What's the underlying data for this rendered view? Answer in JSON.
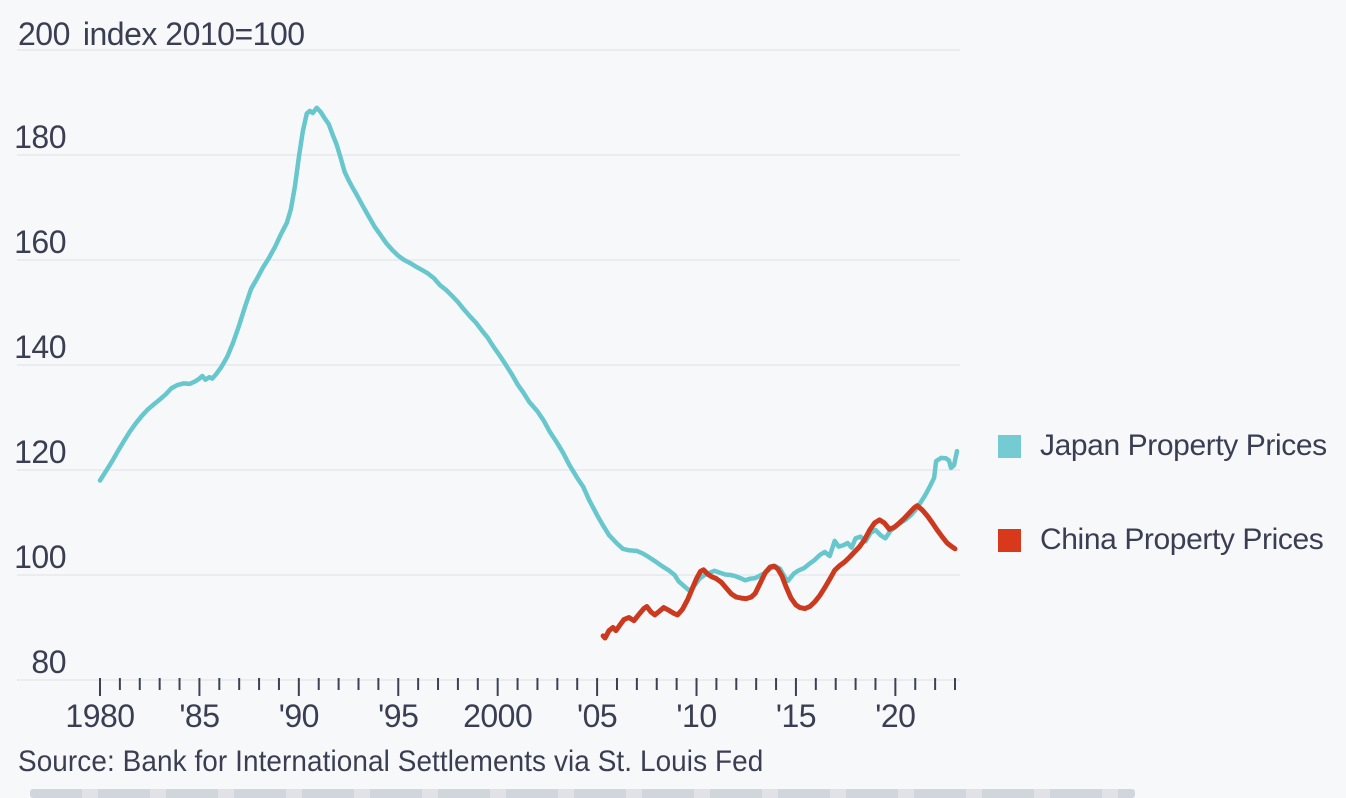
{
  "title": {
    "top_tick": "200",
    "axis_label": "index 2010=100"
  },
  "source": "Source: Bank for International Settlements via St. Louis Fed",
  "colors": {
    "background": "#f7f8fa",
    "gridline": "#e3e5ea",
    "text": "#3b3e52",
    "tick": "#3e4156",
    "japan_line": "#68c6cd",
    "japan_swatch": "#74ccd2",
    "china_line": "#cb3a1f",
    "china_swatch": "#d8391a"
  },
  "legend": [
    {
      "label": "Japan Property Prices",
      "swatch_color": "#74ccd2"
    },
    {
      "label": "China Property Prices",
      "swatch_color": "#d8391a"
    }
  ],
  "chart_data": {
    "type": "line",
    "title": "index 2010=100",
    "xlabel": "",
    "ylabel": "index 2010=100",
    "ylim": [
      80,
      200
    ],
    "xlim": [
      1980,
      2023.3
    ],
    "grid": true,
    "legend_position": "right",
    "y_axis": {
      "ticks": [
        200,
        180,
        160,
        140,
        120,
        100,
        80
      ]
    },
    "x_axis": {
      "labeled_years": [
        1980,
        1985,
        1990,
        1995,
        2000,
        2005,
        2010,
        2015,
        2020
      ],
      "tick_labels": [
        "1980",
        "'85",
        "'90",
        "'95",
        "2000",
        "'05",
        "'10",
        "'15",
        "'20"
      ],
      "minor_tick_every_years": 1,
      "first_tick_year": 1980,
      "last_tick_year": 2023
    },
    "series": [
      {
        "name": "Japan Property Prices",
        "color": "#68c6cd",
        "stroke_width": 4.5,
        "points": [
          [
            1980.0,
            118.0
          ],
          [
            1980.3,
            119.8
          ],
          [
            1980.6,
            121.6
          ],
          [
            1980.9,
            123.6
          ],
          [
            1981.2,
            125.5
          ],
          [
            1981.5,
            127.3
          ],
          [
            1981.8,
            128.9
          ],
          [
            1982.1,
            130.3
          ],
          [
            1982.4,
            131.5
          ],
          [
            1982.7,
            132.5
          ],
          [
            1983.0,
            133.4
          ],
          [
            1983.3,
            134.4
          ],
          [
            1983.6,
            135.6
          ],
          [
            1983.9,
            136.2
          ],
          [
            1984.2,
            136.5
          ],
          [
            1984.5,
            136.4
          ],
          [
            1984.8,
            136.9
          ],
          [
            1985.0,
            137.4
          ],
          [
            1985.15,
            137.9
          ],
          [
            1985.3,
            137.2
          ],
          [
            1985.5,
            137.7
          ],
          [
            1985.65,
            137.4
          ],
          [
            1985.85,
            138.3
          ],
          [
            1986.1,
            139.6
          ],
          [
            1986.4,
            141.6
          ],
          [
            1986.7,
            144.3
          ],
          [
            1987.0,
            147.6
          ],
          [
            1987.3,
            151.2
          ],
          [
            1987.6,
            154.5
          ],
          [
            1987.9,
            156.5
          ],
          [
            1988.2,
            158.6
          ],
          [
            1988.5,
            160.4
          ],
          [
            1988.8,
            162.5
          ],
          [
            1989.1,
            164.9
          ],
          [
            1989.4,
            167.1
          ],
          [
            1989.6,
            169.7
          ],
          [
            1989.8,
            174.0
          ],
          [
            1990.0,
            179.5
          ],
          [
            1990.2,
            184.5
          ],
          [
            1990.4,
            187.9
          ],
          [
            1990.55,
            188.4
          ],
          [
            1990.7,
            188.0
          ],
          [
            1990.9,
            189.0
          ],
          [
            1991.1,
            188.2
          ],
          [
            1991.3,
            187.0
          ],
          [
            1991.5,
            185.9
          ],
          [
            1991.7,
            183.9
          ],
          [
            1991.9,
            182.0
          ],
          [
            1992.1,
            179.5
          ],
          [
            1992.3,
            176.8
          ],
          [
            1992.5,
            175.2
          ],
          [
            1992.7,
            173.8
          ],
          [
            1992.9,
            172.5
          ],
          [
            1993.2,
            170.4
          ],
          [
            1993.5,
            168.4
          ],
          [
            1993.8,
            166.4
          ],
          [
            1994.1,
            164.8
          ],
          [
            1994.4,
            163.2
          ],
          [
            1994.7,
            161.9
          ],
          [
            1995.0,
            160.8
          ],
          [
            1995.3,
            160.0
          ],
          [
            1995.6,
            159.4
          ],
          [
            1995.9,
            158.7
          ],
          [
            1996.2,
            158.1
          ],
          [
            1996.5,
            157.4
          ],
          [
            1996.8,
            156.5
          ],
          [
            1997.1,
            155.2
          ],
          [
            1997.4,
            154.3
          ],
          [
            1997.7,
            153.2
          ],
          [
            1998.0,
            152.0
          ],
          [
            1998.3,
            150.6
          ],
          [
            1998.6,
            149.3
          ],
          [
            1998.9,
            148.1
          ],
          [
            1999.2,
            146.6
          ],
          [
            1999.5,
            145.2
          ],
          [
            1999.8,
            143.4
          ],
          [
            2000.1,
            141.8
          ],
          [
            2000.4,
            140.1
          ],
          [
            2000.7,
            138.3
          ],
          [
            2001.0,
            136.3
          ],
          [
            2001.3,
            134.7
          ],
          [
            2001.6,
            132.9
          ],
          [
            2002.0,
            131.2
          ],
          [
            2002.3,
            129.5
          ],
          [
            2002.6,
            127.4
          ],
          [
            2003.0,
            125.1
          ],
          [
            2003.3,
            123.2
          ],
          [
            2003.6,
            121.0
          ],
          [
            2004.0,
            118.5
          ],
          [
            2004.3,
            116.8
          ],
          [
            2004.6,
            114.3
          ],
          [
            2005.0,
            111.4
          ],
          [
            2005.3,
            109.4
          ],
          [
            2005.6,
            107.6
          ],
          [
            2006.0,
            106.0
          ],
          [
            2006.3,
            105.0
          ],
          [
            2006.6,
            104.7
          ],
          [
            2007.0,
            104.6
          ],
          [
            2007.3,
            104.1
          ],
          [
            2007.6,
            103.4
          ],
          [
            2008.0,
            102.4
          ],
          [
            2008.3,
            101.6
          ],
          [
            2008.6,
            100.9
          ],
          [
            2008.9,
            100.0
          ],
          [
            2009.1,
            98.8
          ],
          [
            2009.4,
            97.8
          ],
          [
            2009.65,
            97.0
          ],
          [
            2009.9,
            98.0
          ],
          [
            2010.15,
            99.3
          ],
          [
            2010.4,
            100.0
          ],
          [
            2010.65,
            100.4
          ],
          [
            2010.9,
            100.8
          ],
          [
            2011.2,
            100.4
          ],
          [
            2011.45,
            100.1
          ],
          [
            2011.7,
            100.0
          ],
          [
            2011.95,
            99.8
          ],
          [
            2012.2,
            99.4
          ],
          [
            2012.45,
            99.0
          ],
          [
            2012.7,
            99.3
          ],
          [
            2012.95,
            99.4
          ],
          [
            2013.2,
            99.9
          ],
          [
            2013.45,
            100.4
          ],
          [
            2013.7,
            101.2
          ],
          [
            2013.95,
            101.7
          ],
          [
            2014.2,
            101.2
          ],
          [
            2014.45,
            99.5
          ],
          [
            2014.6,
            98.9
          ],
          [
            2014.9,
            100.3
          ],
          [
            2015.15,
            100.9
          ],
          [
            2015.4,
            101.3
          ],
          [
            2015.7,
            102.2
          ],
          [
            2015.95,
            102.9
          ],
          [
            2016.2,
            103.8
          ],
          [
            2016.45,
            104.4
          ],
          [
            2016.7,
            103.6
          ],
          [
            2016.95,
            106.5
          ],
          [
            2017.15,
            105.4
          ],
          [
            2017.4,
            105.7
          ],
          [
            2017.6,
            106.1
          ],
          [
            2017.8,
            105.2
          ],
          [
            2018.0,
            107.0
          ],
          [
            2018.25,
            107.3
          ],
          [
            2018.5,
            106.4
          ],
          [
            2018.75,
            108.0
          ],
          [
            2019.0,
            108.6
          ],
          [
            2019.25,
            107.6
          ],
          [
            2019.5,
            107.0
          ],
          [
            2019.75,
            108.4
          ],
          [
            2020.0,
            109.2
          ],
          [
            2020.25,
            109.9
          ],
          [
            2020.5,
            110.5
          ],
          [
            2020.75,
            111.3
          ],
          [
            2021.0,
            112.3
          ],
          [
            2021.25,
            113.7
          ],
          [
            2021.5,
            115.2
          ],
          [
            2021.75,
            117.0
          ],
          [
            2021.95,
            118.5
          ],
          [
            2022.05,
            121.7
          ],
          [
            2022.3,
            122.3
          ],
          [
            2022.55,
            122.2
          ],
          [
            2022.7,
            121.8
          ],
          [
            2022.8,
            120.4
          ],
          [
            2022.95,
            120.9
          ],
          [
            2023.1,
            123.6
          ]
        ]
      },
      {
        "name": "China Property Prices",
        "color": "#cb3a1f",
        "stroke_width": 5,
        "points": [
          [
            2005.3,
            88.4
          ],
          [
            2005.4,
            88.0
          ],
          [
            2005.6,
            89.4
          ],
          [
            2005.8,
            90.0
          ],
          [
            2005.95,
            89.4
          ],
          [
            2006.15,
            90.5
          ],
          [
            2006.35,
            91.5
          ],
          [
            2006.6,
            91.9
          ],
          [
            2006.85,
            91.3
          ],
          [
            2007.1,
            92.5
          ],
          [
            2007.35,
            93.6
          ],
          [
            2007.5,
            94.0
          ],
          [
            2007.7,
            93.0
          ],
          [
            2007.9,
            92.4
          ],
          [
            2008.1,
            93.0
          ],
          [
            2008.35,
            93.8
          ],
          [
            2008.6,
            93.3
          ],
          [
            2008.85,
            92.7
          ],
          [
            2009.05,
            92.4
          ],
          [
            2009.3,
            93.5
          ],
          [
            2009.55,
            95.3
          ],
          [
            2009.8,
            97.5
          ],
          [
            2010.0,
            99.3
          ],
          [
            2010.2,
            100.7
          ],
          [
            2010.35,
            101.0
          ],
          [
            2010.55,
            100.2
          ],
          [
            2010.75,
            99.7
          ],
          [
            2011.0,
            99.3
          ],
          [
            2011.25,
            98.6
          ],
          [
            2011.5,
            97.5
          ],
          [
            2011.75,
            96.4
          ],
          [
            2012.0,
            95.8
          ],
          [
            2012.25,
            95.6
          ],
          [
            2012.5,
            95.5
          ],
          [
            2012.75,
            95.8
          ],
          [
            2012.95,
            96.5
          ],
          [
            2013.2,
            98.4
          ],
          [
            2013.45,
            100.4
          ],
          [
            2013.7,
            101.5
          ],
          [
            2013.9,
            101.7
          ],
          [
            2014.1,
            101.1
          ],
          [
            2014.3,
            99.8
          ],
          [
            2014.5,
            97.8
          ],
          [
            2014.75,
            95.6
          ],
          [
            2015.0,
            94.3
          ],
          [
            2015.2,
            93.8
          ],
          [
            2015.45,
            93.6
          ],
          [
            2015.7,
            94.0
          ],
          [
            2015.95,
            94.9
          ],
          [
            2016.2,
            96.1
          ],
          [
            2016.45,
            97.6
          ],
          [
            2016.7,
            99.2
          ],
          [
            2016.95,
            100.9
          ],
          [
            2017.2,
            101.8
          ],
          [
            2017.45,
            102.5
          ],
          [
            2017.7,
            103.4
          ],
          [
            2017.95,
            104.4
          ],
          [
            2018.2,
            105.4
          ],
          [
            2018.45,
            106.7
          ],
          [
            2018.7,
            108.5
          ],
          [
            2018.95,
            109.9
          ],
          [
            2019.2,
            110.5
          ],
          [
            2019.45,
            109.9
          ],
          [
            2019.7,
            108.7
          ],
          [
            2019.95,
            109.1
          ],
          [
            2020.2,
            109.9
          ],
          [
            2020.45,
            110.8
          ],
          [
            2020.7,
            111.8
          ],
          [
            2020.95,
            112.8
          ],
          [
            2021.1,
            113.2
          ],
          [
            2021.35,
            112.4
          ],
          [
            2021.6,
            111.3
          ],
          [
            2021.85,
            110.0
          ],
          [
            2022.1,
            108.6
          ],
          [
            2022.35,
            107.3
          ],
          [
            2022.6,
            106.1
          ],
          [
            2022.8,
            105.5
          ],
          [
            2023.0,
            105.0
          ]
        ]
      }
    ]
  }
}
